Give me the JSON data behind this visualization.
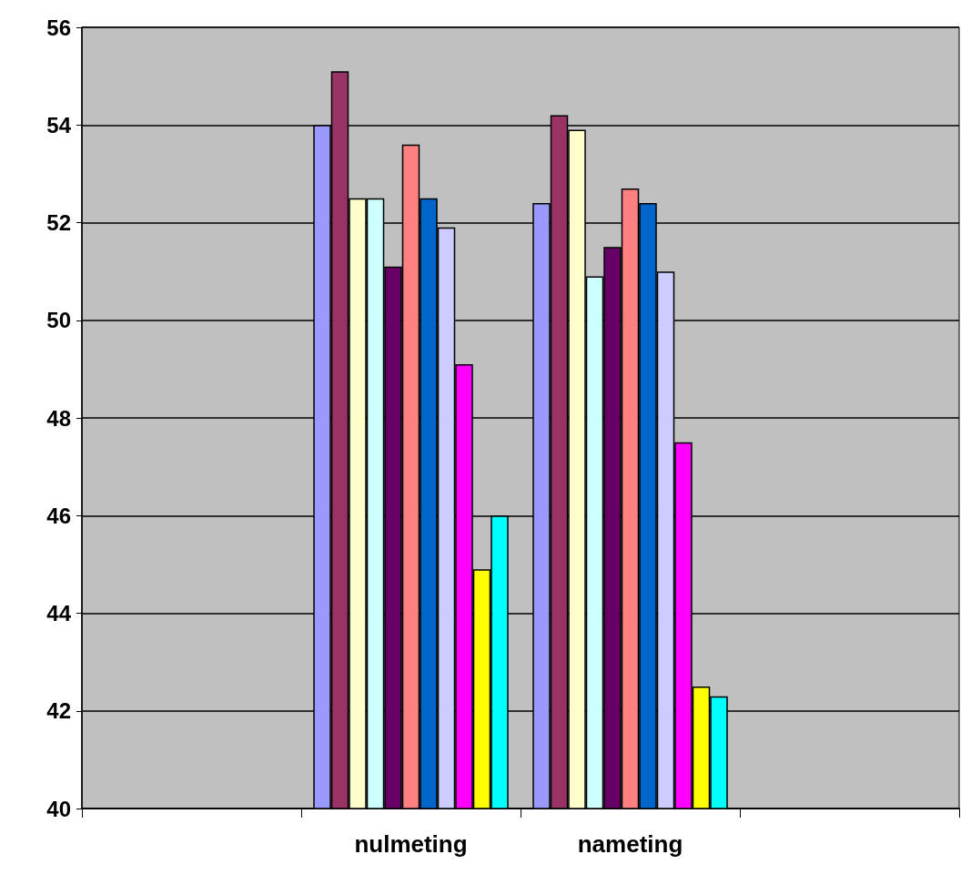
{
  "chart_data": {
    "type": "bar",
    "categories": [
      null,
      "nulmeting",
      "nameting",
      null
    ],
    "series": [
      {
        "color": "#9999ff",
        "values": [
          null,
          54.0,
          52.4,
          null
        ]
      },
      {
        "color": "#993366",
        "values": [
          null,
          55.1,
          54.2,
          null
        ]
      },
      {
        "color": "#ffffcc",
        "values": [
          null,
          52.5,
          53.9,
          null
        ]
      },
      {
        "color": "#ccffff",
        "values": [
          null,
          52.5,
          50.9,
          null
        ]
      },
      {
        "color": "#660066",
        "values": [
          null,
          51.1,
          51.5,
          null
        ]
      },
      {
        "color": "#ff8080",
        "values": [
          null,
          53.6,
          52.7,
          null
        ]
      },
      {
        "color": "#0066cc",
        "values": [
          null,
          52.5,
          52.4,
          null
        ]
      },
      {
        "color": "#ccccff",
        "values": [
          null,
          51.9,
          51.0,
          null
        ]
      },
      {
        "color": "#ff00ff",
        "values": [
          null,
          49.1,
          47.5,
          null
        ]
      },
      {
        "color": "#ffff00",
        "values": [
          null,
          44.9,
          42.5,
          null
        ]
      },
      {
        "color": "#00ffff",
        "values": [
          null,
          46.0,
          42.3,
          null
        ]
      }
    ],
    "ylim": [
      40,
      56
    ],
    "yticks": [
      40,
      42,
      44,
      46,
      48,
      50,
      52,
      54,
      56
    ],
    "grid": "y"
  }
}
